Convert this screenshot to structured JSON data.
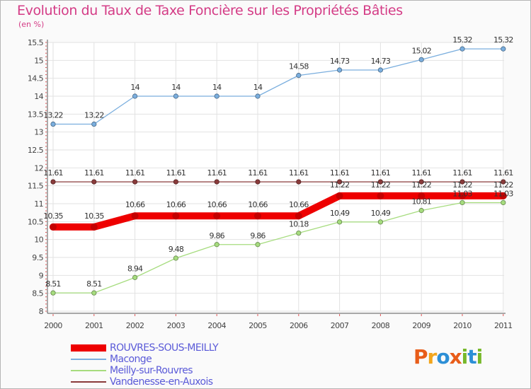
{
  "header": {
    "title": "Evolution du Taux de Taxe Foncière sur les Propriétés Bâties",
    "unit": "(en %)"
  },
  "logo": {
    "text": "Proxiti",
    "colors": [
      "#e85d1a",
      "#f2a51c",
      "#2c8fd6",
      "#e85d1a",
      "#77b82a",
      "#2c8fd6",
      "#77b82a"
    ]
  },
  "chart_data": {
    "type": "line",
    "title": "Evolution du Taux de Taxe Foncière sur les Propriétés Bâties",
    "ylabel": "(en %)",
    "xlabel": "",
    "x": [
      "2000",
      "2001",
      "2002",
      "2003",
      "2004",
      "2005",
      "2006",
      "2007",
      "2008",
      "2009",
      "2010",
      "2011"
    ],
    "ylim": [
      8,
      15.5
    ],
    "yticks": [
      "8",
      "8.5",
      "9",
      "9.5",
      "10",
      "10.5",
      "11",
      "11.5",
      "12",
      "12.5",
      "13",
      "13.5",
      "14",
      "14.5",
      "15",
      "15.5"
    ],
    "grid": true,
    "legend_position": "bottom-left",
    "series": [
      {
        "name": "ROUVRES-SOUS-MEILLY",
        "color": "#ee0000",
        "emphasis": "thick",
        "values": [
          10.35,
          10.35,
          10.66,
          10.66,
          10.66,
          10.66,
          10.66,
          11.22,
          11.22,
          11.22,
          11.22,
          11.22
        ],
        "labels": [
          "10.35",
          "10.35",
          "10.66",
          "10.66",
          "10.66",
          "10.66",
          "10.66",
          "11.22",
          "11.22",
          "11.22",
          "11.22",
          "11.22"
        ]
      },
      {
        "name": "Maconge",
        "color": "#7aaede",
        "emphasis": "thin",
        "values": [
          13.22,
          13.22,
          14,
          14,
          14,
          14,
          14.58,
          14.73,
          14.73,
          15.02,
          15.32,
          15.32
        ],
        "labels": [
          "13.22",
          "13.22",
          "14",
          "14",
          "14",
          "14",
          "14.58",
          "14.73",
          "14.73",
          "15.02",
          "15.32",
          "15.32"
        ]
      },
      {
        "name": "Meilly-sur-Rouvres",
        "color": "#a6dc7e",
        "emphasis": "thin",
        "values": [
          8.51,
          8.51,
          8.94,
          9.48,
          9.86,
          9.86,
          10.18,
          10.49,
          10.49,
          10.81,
          11.03,
          11.03
        ],
        "labels": [
          "8.51",
          "8.51",
          "8.94",
          "9.48",
          "9.86",
          "9.86",
          "10.18",
          "10.49",
          "10.49",
          "10.81",
          "11.03",
          "11.03"
        ]
      },
      {
        "name": "Vandenesse-en-Auxois",
        "color": "#8a3b3b",
        "emphasis": "thin",
        "values": [
          11.61,
          11.61,
          11.61,
          11.61,
          11.61,
          11.61,
          11.61,
          11.61,
          11.61,
          11.61,
          11.61,
          11.61
        ],
        "labels": [
          "11.61",
          "11.61",
          "11.61",
          "11.61",
          "11.61",
          "11.61",
          "11.61",
          "11.61",
          "11.61",
          "11.61",
          "11.61",
          "11.61"
        ]
      }
    ]
  }
}
